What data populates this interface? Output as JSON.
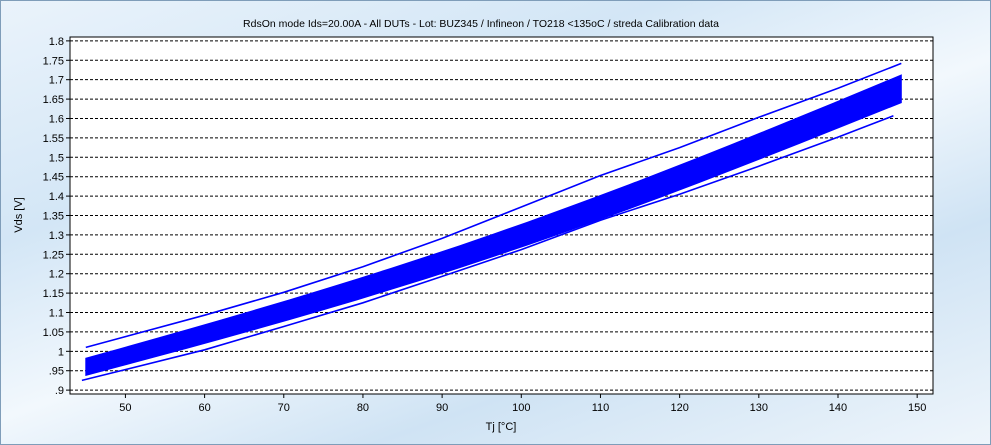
{
  "chart_data": {
    "type": "line",
    "title": "RdsOn mode Ids=20.00A - All DUTs - Lot: BUZ345 / Infineon / TO218 <135oC / streda  Calibration data",
    "xlabel": "Tj [°C]",
    "ylabel": "Vds [V]",
    "xlim": [
      43,
      152
    ],
    "ylim": [
      0.89,
      1.81
    ],
    "x_ticks": [
      50,
      60,
      70,
      80,
      90,
      100,
      110,
      120,
      130,
      140,
      150
    ],
    "x_tick_labels": [
      "50",
      "60",
      "70",
      "80",
      "90",
      "100",
      "110",
      "120",
      "130",
      "140",
      "150"
    ],
    "y_ticks": [
      0.9,
      0.95,
      1.0,
      1.05,
      1.1,
      1.15,
      1.2,
      1.25,
      1.3,
      1.35,
      1.4,
      1.45,
      1.5,
      1.55,
      1.6,
      1.65,
      1.7,
      1.75,
      1.8
    ],
    "y_tick_labels": [
      ".9",
      ".95",
      "1",
      "1.05",
      "1.1",
      "1.15",
      "1.2",
      "1.25",
      "1.3",
      "1.35",
      "1.4",
      "1.45",
      "1.5",
      "1.55",
      "1.6",
      "1.65",
      "1.7",
      "1.75",
      "1.8"
    ],
    "grid": "horizontal dashed",
    "series_color": "#0000ff",
    "series": [
      {
        "x": [
          45,
          60,
          70,
          80,
          90,
          100,
          110,
          120,
          130,
          140,
          148
        ],
        "y": [
          1.01,
          1.093,
          1.152,
          1.218,
          1.291,
          1.372,
          1.453,
          1.525,
          1.603,
          1.678,
          1.742
        ]
      },
      {
        "x": [
          44.5,
          60,
          70,
          80,
          90,
          100,
          110,
          120,
          130,
          140,
          147
        ],
        "y": [
          0.925,
          1.004,
          1.064,
          1.125,
          1.193,
          1.262,
          1.338,
          1.405,
          1.477,
          1.552,
          1.607
        ]
      },
      {
        "x": [
          45,
          148
        ],
        "y": [
          0.938,
          1.641
        ],
        "band_upper_y": [
          0.982,
          1.712
        ],
        "band": true
      }
    ]
  }
}
